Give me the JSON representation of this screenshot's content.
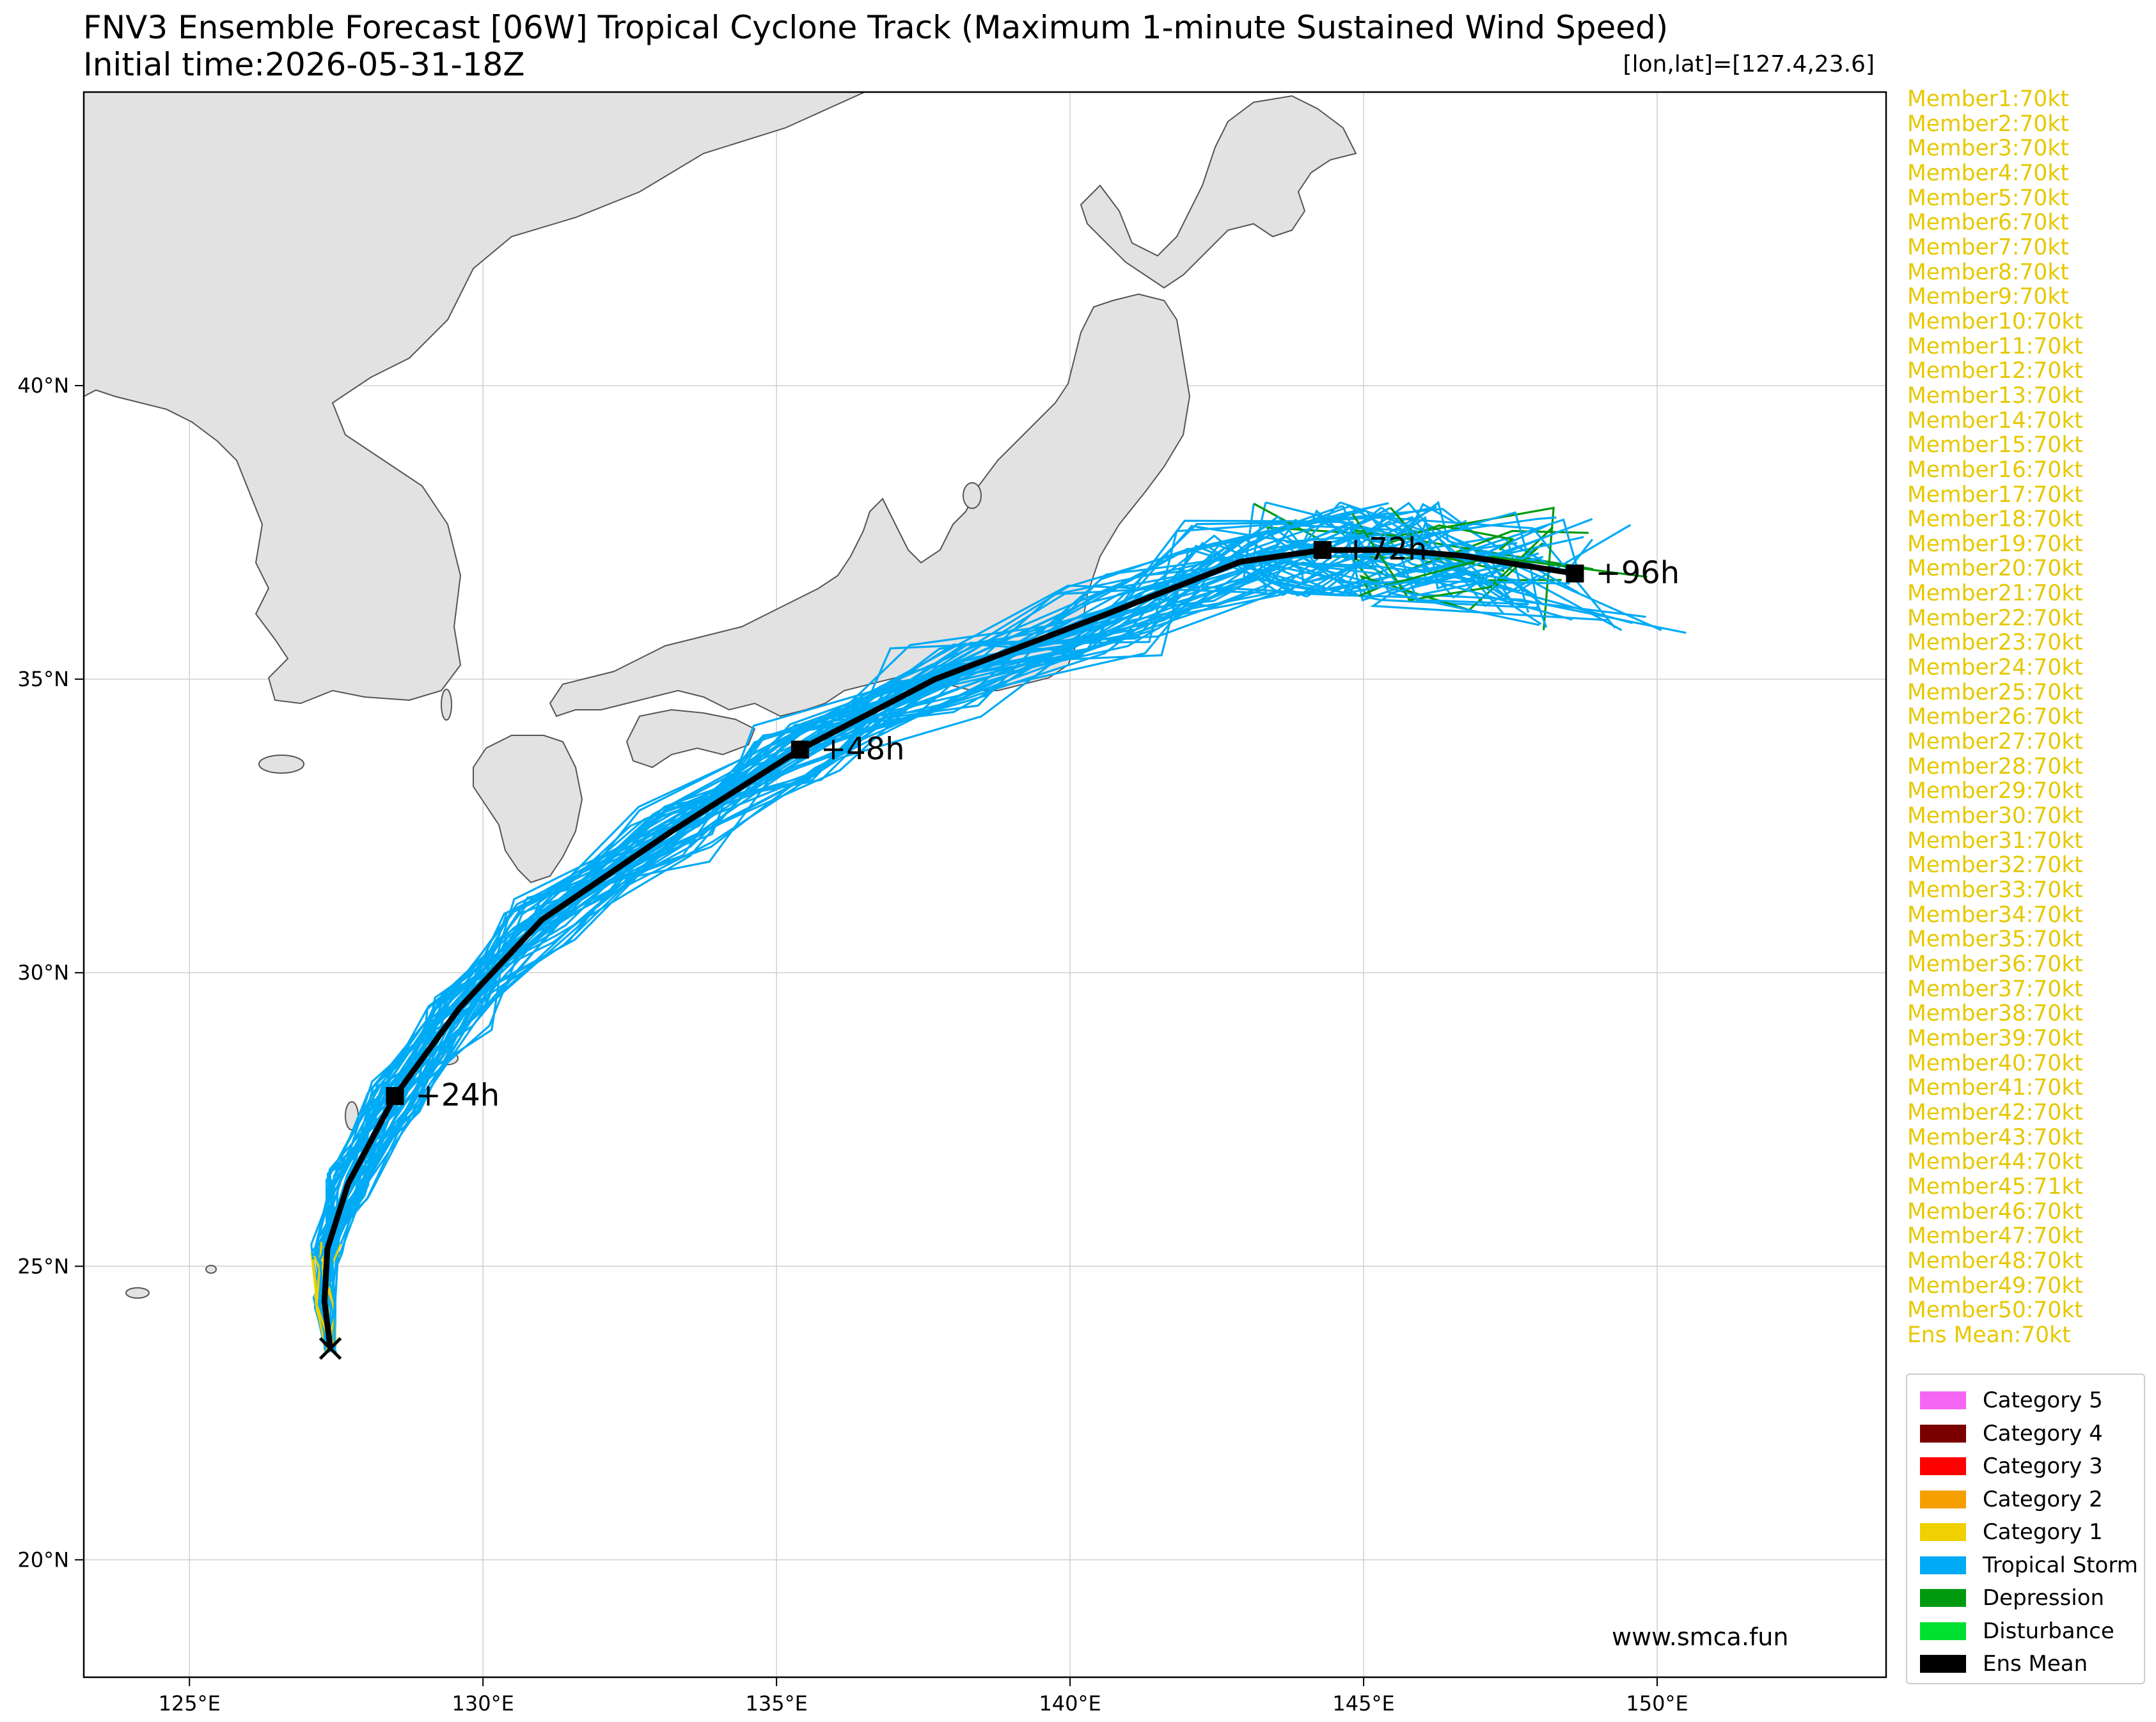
{
  "title_line1": "FNV3 Ensemble Forecast [06W] Tropical Cyclone Track (Maximum 1-minute Sustained Wind Speed)",
  "title_line2": "Initial time:2026-05-31-18Z",
  "position_readout": "[lon,lat]=[127.4,23.6]",
  "credit": "www.smca.fun",
  "axes": {
    "lon_range": [
      123.2,
      153.9
    ],
    "lat_range": [
      18.0,
      45.0
    ],
    "lon_ticks": [
      "125°E",
      "130°E",
      "135°E",
      "140°E",
      "145°E",
      "150°E"
    ],
    "lat_ticks": [
      "20°N",
      "25°N",
      "30°N",
      "35°N",
      "40°N"
    ],
    "grid": true
  },
  "members": [
    "Member1:70kt",
    "Member2:70kt",
    "Member3:70kt",
    "Member4:70kt",
    "Member5:70kt",
    "Member6:70kt",
    "Member7:70kt",
    "Member8:70kt",
    "Member9:70kt",
    "Member10:70kt",
    "Member11:70kt",
    "Member12:70kt",
    "Member13:70kt",
    "Member14:70kt",
    "Member15:70kt",
    "Member16:70kt",
    "Member17:70kt",
    "Member18:70kt",
    "Member19:70kt",
    "Member20:70kt",
    "Member21:70kt",
    "Member22:70kt",
    "Member23:70kt",
    "Member24:70kt",
    "Member25:70kt",
    "Member26:70kt",
    "Member27:70kt",
    "Member28:70kt",
    "Member29:70kt",
    "Member30:70kt",
    "Member31:70kt",
    "Member32:70kt",
    "Member33:70kt",
    "Member34:70kt",
    "Member35:70kt",
    "Member36:70kt",
    "Member37:70kt",
    "Member38:70kt",
    "Member39:70kt",
    "Member40:70kt",
    "Member41:70kt",
    "Member42:70kt",
    "Member43:70kt",
    "Member44:70kt",
    "Member45:71kt",
    "Member46:70kt",
    "Member47:70kt",
    "Member48:70kt",
    "Member49:70kt",
    "Member50:70kt",
    "Ens Mean:70kt"
  ],
  "legend": [
    {
      "label": "Category 5",
      "color": "#f566f5"
    },
    {
      "label": "Category 4",
      "color": "#7a0000"
    },
    {
      "label": "Category 3",
      "color": "#ff0000"
    },
    {
      "label": "Category 2",
      "color": "#f5a000"
    },
    {
      "label": "Category 1",
      "color": "#f0d000"
    },
    {
      "label": "Tropical Storm",
      "color": "#00aaf5"
    },
    {
      "label": "Depression",
      "color": "#009a10"
    },
    {
      "label": "Disturbance",
      "color": "#00e030"
    },
    {
      "label": "Ens Mean",
      "color": "#000000"
    }
  ],
  "ensemble_mean_track": [
    [
      127.4,
      23.6
    ],
    [
      127.3,
      24.4
    ],
    [
      127.35,
      25.3
    ],
    [
      127.7,
      26.4
    ],
    [
      128.5,
      27.9
    ],
    [
      129.6,
      29.4
    ],
    [
      131.0,
      30.9
    ],
    [
      133.2,
      32.4
    ],
    [
      135.4,
      33.8
    ],
    [
      137.7,
      35.0
    ],
    [
      140.6,
      36.1
    ],
    [
      142.9,
      37.0
    ],
    [
      144.3,
      37.2
    ],
    [
      145.5,
      37.2
    ],
    [
      146.7,
      37.1
    ],
    [
      148.6,
      36.8
    ]
  ],
  "time_labels": [
    {
      "text": "+24h",
      "lon": 128.5,
      "lat": 27.9
    },
    {
      "text": "+48h",
      "lon": 135.4,
      "lat": 33.8
    },
    {
      "text": "+72h",
      "lon": 144.3,
      "lat": 37.2
    },
    {
      "text": "+96h",
      "lon": 148.6,
      "lat": 36.8
    }
  ],
  "colors": {
    "land": "#e2e2e2",
    "coast": "#555555",
    "grid": "#d0d0d0",
    "member_text": "#e6c800"
  }
}
